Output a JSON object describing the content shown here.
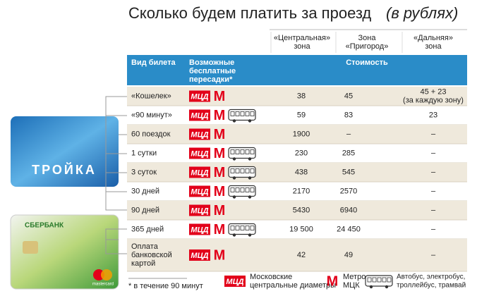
{
  "title": "Сколько будем платить за проезд",
  "title_unit": "(в рублях)",
  "zones": [
    [
      "«Центральная»",
      "зона"
    ],
    [
      "Зона",
      "«Пригород»"
    ],
    [
      "«Дальняя»",
      "зона"
    ]
  ],
  "header": {
    "ticket": "Вид билета",
    "transfers": [
      "Возможные",
      "бесплатные",
      "пересадки*"
    ],
    "cost": "Стоимость"
  },
  "icons": {
    "mcd": "МЦД",
    "metro": "М"
  },
  "rows": [
    {
      "ticket": [
        "«Кошелек»"
      ],
      "transfers": [
        "mcd",
        "metro"
      ],
      "values": [
        "38",
        "45",
        [
          "45 + 23",
          "(за каждую зону)"
        ]
      ],
      "shaded": true
    },
    {
      "ticket": [
        "«90 минут»"
      ],
      "transfers": [
        "mcd",
        "metro",
        "bus"
      ],
      "values": [
        "59",
        "83",
        "23"
      ],
      "shaded": false
    },
    {
      "ticket": [
        "60 поездок"
      ],
      "transfers": [
        "mcd",
        "metro"
      ],
      "values": [
        "1900",
        "–",
        "–"
      ],
      "shaded": true
    },
    {
      "ticket": [
        "1 сутки"
      ],
      "transfers": [
        "mcd",
        "metro",
        "bus"
      ],
      "values": [
        "230",
        "285",
        "–"
      ],
      "shaded": false
    },
    {
      "ticket": [
        "3 суток"
      ],
      "transfers": [
        "mcd",
        "metro",
        "bus"
      ],
      "values": [
        "438",
        "545",
        "–"
      ],
      "shaded": true
    },
    {
      "ticket": [
        "30 дней"
      ],
      "transfers": [
        "mcd",
        "metro",
        "bus"
      ],
      "values": [
        "2170",
        "2570",
        "–"
      ],
      "shaded": false
    },
    {
      "ticket": [
        "90 дней"
      ],
      "transfers": [
        "mcd",
        "metro"
      ],
      "values": [
        "5430",
        "6940",
        "–"
      ],
      "shaded": true
    },
    {
      "ticket": [
        "365 дней"
      ],
      "transfers": [
        "mcd",
        "metro",
        "bus"
      ],
      "values": [
        "19 500",
        "24 450",
        "–"
      ],
      "shaded": false
    },
    {
      "ticket": [
        "Оплата",
        "банковской",
        "картой"
      ],
      "transfers": [
        "mcd",
        "metro"
      ],
      "values": [
        "42",
        "49",
        "–"
      ],
      "shaded": true
    }
  ],
  "cards": {
    "troika": "ТРОЙКА",
    "bank": "СБЕРБАНК",
    "brand": "mastercard"
  },
  "footnote": "* в течение 90 минут",
  "legend": {
    "mcd": [
      "Московские",
      "центральные диаметры"
    ],
    "metro": [
      "Метро,",
      "МЦК"
    ],
    "bus": [
      "Автобус, электробус,",
      "троллейбус, трамвай"
    ]
  }
}
